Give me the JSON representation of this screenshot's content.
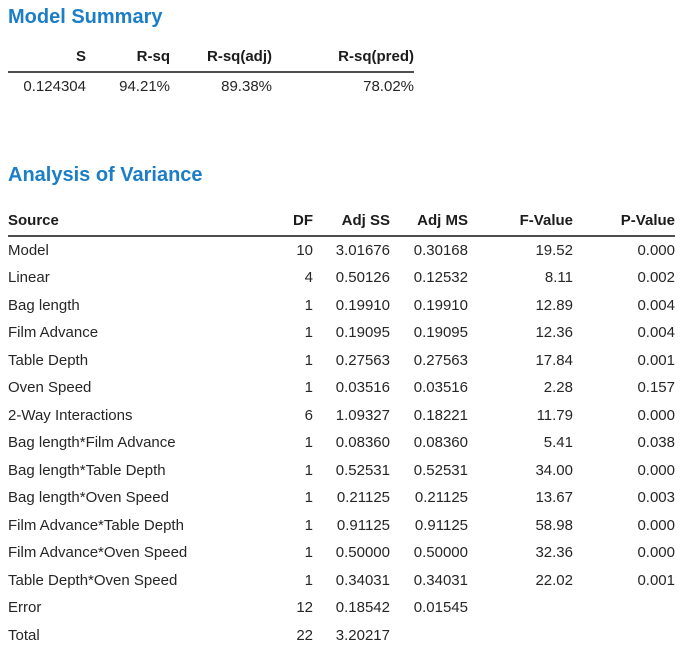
{
  "model_summary": {
    "title": "Model Summary",
    "columns": [
      "S",
      "R-sq",
      "R-sq(adj)",
      "R-sq(pred)"
    ],
    "values": [
      "0.124304",
      "94.21%",
      "89.38%",
      "78.02%"
    ]
  },
  "anova": {
    "title": "Analysis of Variance",
    "columns": [
      "Source",
      "DF",
      "Adj SS",
      "Adj MS",
      "F-Value",
      "P-Value"
    ],
    "rows": [
      {
        "source": "Model",
        "df": "10",
        "adj_ss": "3.01676",
        "adj_ms": "0.30168",
        "f": "19.52",
        "p": "0.000"
      },
      {
        "source": "Linear",
        "df": "4",
        "adj_ss": "0.50126",
        "adj_ms": "0.12532",
        "f": "8.11",
        "p": "0.002"
      },
      {
        "source": "Bag length",
        "df": "1",
        "adj_ss": "0.19910",
        "adj_ms": "0.19910",
        "f": "12.89",
        "p": "0.004"
      },
      {
        "source": "Film Advance",
        "df": "1",
        "adj_ss": "0.19095",
        "adj_ms": "0.19095",
        "f": "12.36",
        "p": "0.004"
      },
      {
        "source": "Table Depth",
        "df": "1",
        "adj_ss": "0.27563",
        "adj_ms": "0.27563",
        "f": "17.84",
        "p": "0.001"
      },
      {
        "source": "Oven Speed",
        "df": "1",
        "adj_ss": "0.03516",
        "adj_ms": "0.03516",
        "f": "2.28",
        "p": "0.157"
      },
      {
        "source": "2-Way Interactions",
        "df": "6",
        "adj_ss": "1.09327",
        "adj_ms": "0.18221",
        "f": "11.79",
        "p": "0.000"
      },
      {
        "source": "Bag length*Film Advance",
        "df": "1",
        "adj_ss": "0.08360",
        "adj_ms": "0.08360",
        "f": "5.41",
        "p": "0.038"
      },
      {
        "source": "Bag length*Table Depth",
        "df": "1",
        "adj_ss": "0.52531",
        "adj_ms": "0.52531",
        "f": "34.00",
        "p": "0.000"
      },
      {
        "source": "Bag length*Oven Speed",
        "df": "1",
        "adj_ss": "0.21125",
        "adj_ms": "0.21125",
        "f": "13.67",
        "p": "0.003"
      },
      {
        "source": "Film Advance*Table Depth",
        "df": "1",
        "adj_ss": "0.91125",
        "adj_ms": "0.91125",
        "f": "58.98",
        "p": "0.000"
      },
      {
        "source": "Film Advance*Oven Speed",
        "df": "1",
        "adj_ss": "0.50000",
        "adj_ms": "0.50000",
        "f": "32.36",
        "p": "0.000"
      },
      {
        "source": "Table Depth*Oven Speed",
        "df": "1",
        "adj_ss": "0.34031",
        "adj_ms": "0.34031",
        "f": "22.02",
        "p": "0.001"
      },
      {
        "source": "Error",
        "df": "12",
        "adj_ss": "0.18542",
        "adj_ms": "0.01545",
        "f": "",
        "p": ""
      },
      {
        "source": "Total",
        "df": "22",
        "adj_ss": "3.20217",
        "adj_ms": "",
        "f": "",
        "p": ""
      }
    ]
  },
  "colors": {
    "title_blue": "#1b7ec6",
    "text": "#262626",
    "rule": "#4e4e4e"
  }
}
